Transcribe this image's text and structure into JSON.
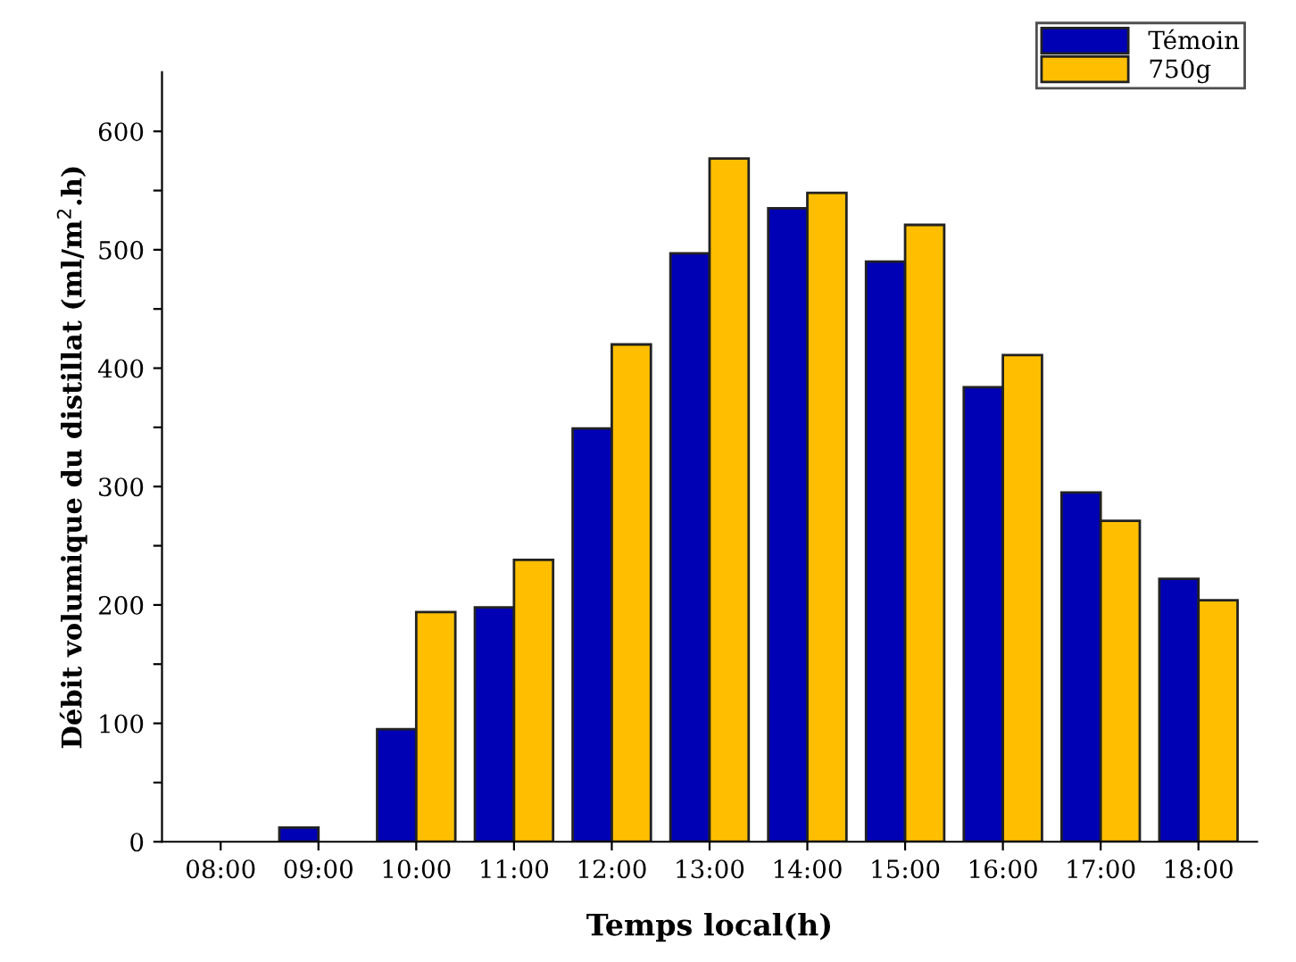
{
  "chart_data": {
    "type": "bar",
    "xlabel": "Temps local(h)",
    "ylabel": "Débit volumique du distillat (ml/m$^{2}$.h)",
    "categories": [
      "08:00",
      "09:00",
      "10:00",
      "11:00",
      "12:00",
      "13:00",
      "14:00",
      "15:00",
      "16:00",
      "17:00",
      "18:00"
    ],
    "series": [
      {
        "name": "Témoin",
        "color": "#0000b4",
        "values": [
          null,
          12,
          95,
          198,
          349,
          497,
          535,
          490,
          384,
          295,
          222
        ]
      },
      {
        "name": "750g",
        "color": "#ffbf00",
        "values": [
          null,
          null,
          194,
          238,
          420,
          577,
          548,
          521,
          411,
          271,
          204
        ]
      }
    ],
    "ylim": [
      0,
      650
    ],
    "yticks": [
      0,
      {
        "value": 50,
        "label": null
      },
      100,
      {
        "value": 150,
        "label": null
      },
      200,
      {
        "value": 250,
        "label": null
      },
      300,
      {
        "value": 350,
        "label": null
      },
      400,
      {
        "value": 450,
        "label": null
      },
      500,
      {
        "value": 550,
        "label": null
      },
      600
    ],
    "grid": false,
    "legend": "top right"
  }
}
